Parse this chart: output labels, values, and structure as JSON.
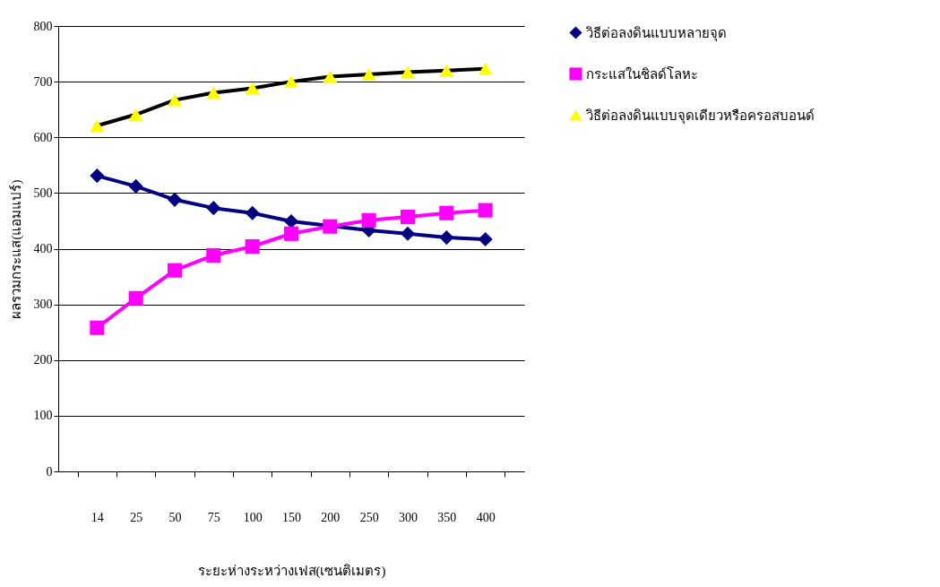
{
  "chart_data": {
    "type": "line",
    "xlabel": "ระยะห่างระหว่างเฟส(เซนติเมตร)",
    "ylabel": "ผลรวมกระแส(แอมแปร์)",
    "categories": [
      "14",
      "25",
      "50",
      "75",
      "100",
      "150",
      "200",
      "250",
      "300",
      "350",
      "400"
    ],
    "ylim": [
      0,
      800
    ],
    "yticks": [
      0,
      100,
      200,
      300,
      400,
      500,
      600,
      700,
      800
    ],
    "grid": "y",
    "legend": "right",
    "series": [
      {
        "name": "วิธีต่อลงดินแบบหลายจุด",
        "color": "#000080",
        "marker": "diamond",
        "values": [
          531,
          512,
          488,
          473,
          464,
          449,
          null,
          433,
          427,
          420,
          417
        ]
      },
      {
        "name": "กระแสในชิลด์โลหะ",
        "color": "#ff00ff",
        "marker": "square",
        "values": [
          258,
          311,
          361,
          388,
          404,
          427,
          440,
          451,
          457,
          464,
          469
        ]
      },
      {
        "name": "วิธีต่อลงดินแบบจุดเดียวหรือครอสบอนด์",
        "color": "#000000",
        "marker": "triangle",
        "colors": [
          "#ffff00",
          "#ffff00",
          "#ffff00",
          "#ffff00",
          "#ffff00",
          "#ffff00",
          "#ffff00",
          "#ffff00",
          "#ffff00",
          "#ffff00",
          "#ffff00"
        ],
        "values": [
          621,
          641,
          667,
          680,
          688,
          700,
          709,
          713,
          717,
          720,
          723
        ]
      }
    ]
  }
}
